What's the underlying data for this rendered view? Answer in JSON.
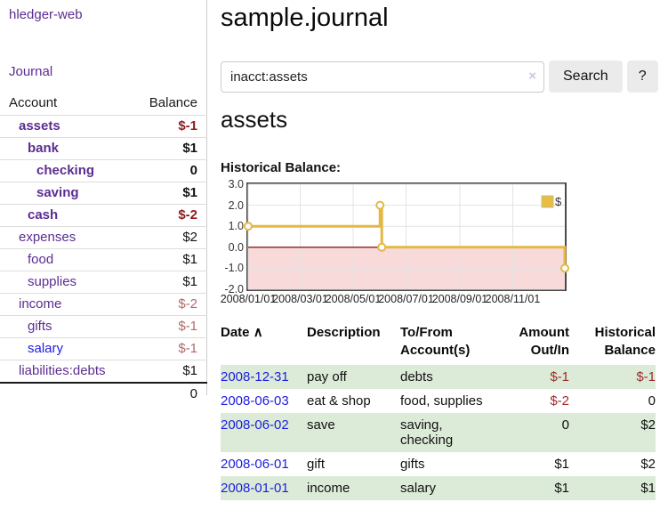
{
  "colors": {
    "link_purple": "#5c2d91",
    "link_blue": "#1d1de0",
    "negative_strong": "#8e1d1d",
    "negative_soft": "#b16a6a",
    "negative_table": "#9e2b2b",
    "row_green": "#dcebd7",
    "button_gray": "#ebebeb"
  },
  "sidebar": {
    "app_title": "hledger-web",
    "journal_label": "Journal",
    "accounts_table": {
      "headers": {
        "account": "Account",
        "balance": "Balance"
      },
      "rows": [
        {
          "name": "assets",
          "indent": 1,
          "bold": true,
          "balance": "$-1",
          "balance_style": "neg-strong"
        },
        {
          "name": "bank",
          "indent": 2,
          "bold": true,
          "balance": "$1",
          "balance_style": "pos"
        },
        {
          "name": "checking",
          "indent": 3,
          "bold": true,
          "balance": "0",
          "balance_style": "pos"
        },
        {
          "name": "saving",
          "indent": 3,
          "bold": true,
          "balance": "$1",
          "balance_style": "pos"
        },
        {
          "name": "cash",
          "indent": 2,
          "bold": true,
          "balance": "$-2",
          "balance_style": "neg-strong"
        },
        {
          "name": "expenses",
          "indent": 1,
          "bold": false,
          "balance": "$2",
          "balance_style": "pos"
        },
        {
          "name": "food",
          "indent": 2,
          "bold": false,
          "balance": "$1",
          "balance_style": "pos"
        },
        {
          "name": "supplies",
          "indent": 2,
          "bold": false,
          "balance": "$1",
          "balance_style": "pos"
        },
        {
          "name": "income",
          "indent": 1,
          "bold": false,
          "balance": "$-2",
          "balance_style": "neg-soft"
        },
        {
          "name": "gifts",
          "indent": 2,
          "bold": false,
          "balance": "$-1",
          "balance_style": "neg-soft"
        },
        {
          "name": "salary",
          "indent": 2,
          "bold": false,
          "link_color": "blue",
          "balance": "$-1",
          "balance_style": "neg-soft"
        },
        {
          "name": "liabilities:debts",
          "indent": 1,
          "bold": false,
          "balance": "$1",
          "balance_style": "pos"
        }
      ],
      "total": "0"
    }
  },
  "header": {
    "title": "sample.journal"
  },
  "search": {
    "value": "inacct:assets",
    "clear_icon": "×",
    "button_label": "Search",
    "help_label": "?"
  },
  "account_page": {
    "heading": "assets",
    "chart_label": "Historical Balance:"
  },
  "chart_data": {
    "type": "line",
    "title": "Historical Balance",
    "step": true,
    "series": [
      {
        "name": "$",
        "color": "#e4b845",
        "points": [
          [
            "2008-01-01",
            1
          ],
          [
            "2008-06-01",
            2
          ],
          [
            "2008-06-03",
            0
          ],
          [
            "2008-12-31",
            -1
          ]
        ]
      }
    ],
    "x_ticks": [
      "2008/01/01",
      "2008/03/01",
      "2008/05/01",
      "2008/07/01",
      "2008/09/01",
      "2008/11/01"
    ],
    "y_ticks": [
      3.0,
      2.0,
      1.0,
      0.0,
      -1.0,
      -2.0
    ],
    "ylim": [
      -2,
      3
    ],
    "xlim": [
      "2008-01-01",
      "2008-12-31"
    ],
    "grid": true,
    "legend_position": "top-right",
    "legend_fill": "#e9bd3f",
    "legend_stroke": "#cbbd82",
    "marker_fill": "#ffffff",
    "negative_region_color": "#f9dada",
    "zero_line_color": "#8b1c1c",
    "grid_color": "#e3e3e3"
  },
  "register_table": {
    "columns": [
      {
        "key": "date",
        "label": "Date",
        "align": "left",
        "sortable": true,
        "sort_indicator": "∧"
      },
      {
        "key": "description",
        "label": "Description",
        "align": "left",
        "sortable": false
      },
      {
        "key": "accounts",
        "label": "To/From Account(s)",
        "align": "left",
        "sortable": false
      },
      {
        "key": "amount",
        "label": "Amount Out/In",
        "align": "right",
        "sortable": false
      },
      {
        "key": "balance",
        "label": "Historical Balance",
        "align": "right",
        "sortable": false
      }
    ],
    "rows": [
      {
        "date": "2008-12-31",
        "description": "pay off",
        "accounts": "debts",
        "amount": "$-1",
        "amount_neg": true,
        "balance": "$-1",
        "balance_neg": true
      },
      {
        "date": "2008-06-03",
        "description": "eat & shop",
        "accounts": "food, supplies",
        "amount": "$-2",
        "amount_neg": true,
        "balance": "0",
        "balance_neg": false
      },
      {
        "date": "2008-06-02",
        "description": "save",
        "accounts": "saving, checking",
        "amount": "0",
        "amount_neg": false,
        "balance": "$2",
        "balance_neg": false
      },
      {
        "date": "2008-06-01",
        "description": "gift",
        "accounts": "gifts",
        "amount": "$1",
        "amount_neg": false,
        "balance": "$2",
        "balance_neg": false
      },
      {
        "date": "2008-01-01",
        "description": "income",
        "accounts": "salary",
        "amount": "$1",
        "amount_neg": false,
        "balance": "$1",
        "balance_neg": false
      }
    ]
  }
}
